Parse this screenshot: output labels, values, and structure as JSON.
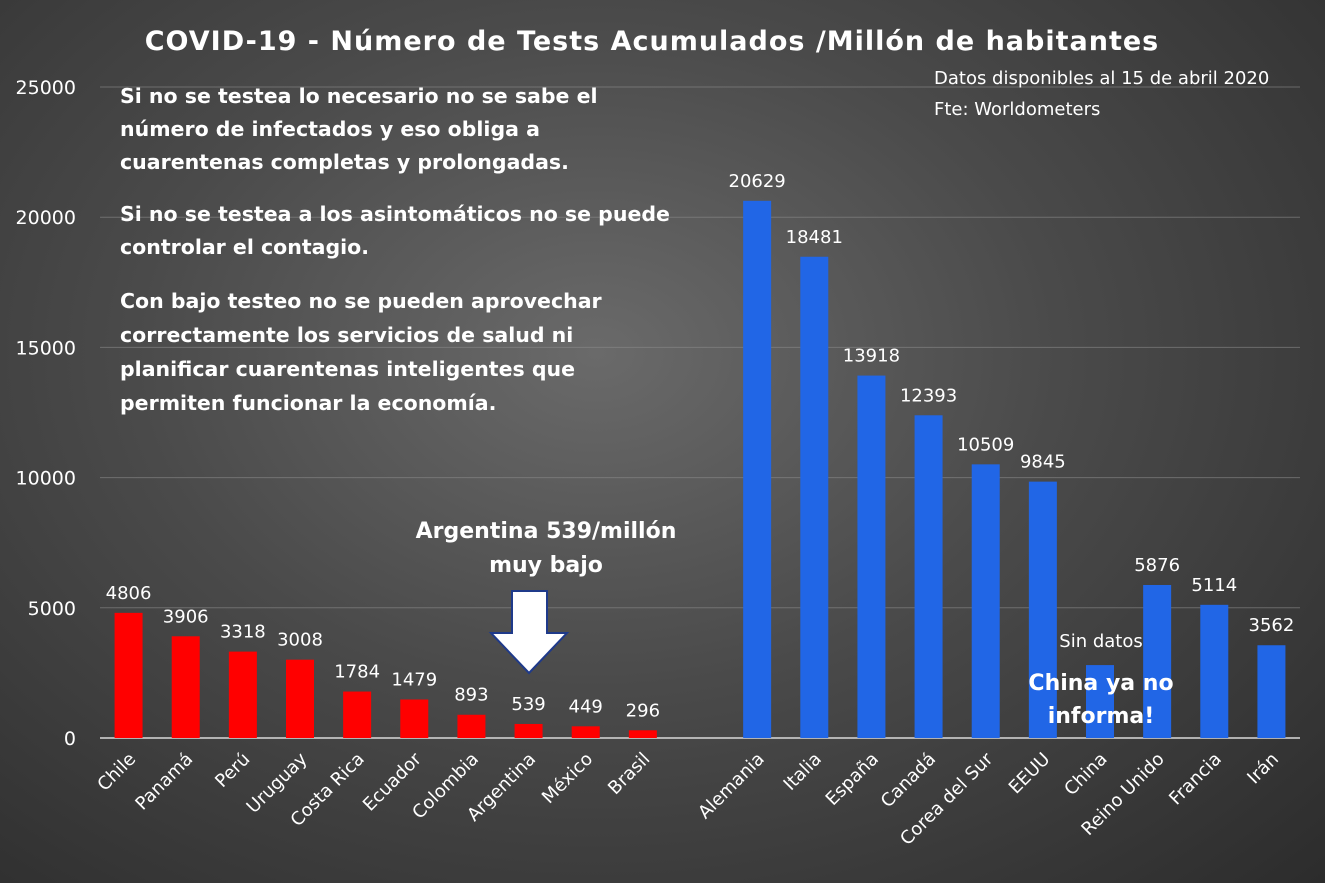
{
  "chart_data": {
    "type": "bar",
    "title": "COVID-19 - Número de Tests Acumulados /Millón de habitantes",
    "xlabel": "",
    "ylabel": "",
    "ylim": [
      0,
      25000
    ],
    "yticks": [
      "0",
      "5000",
      "10000",
      "15000",
      "20000",
      "25000"
    ],
    "grid": true,
    "colors": {
      "latam": "#ff0000",
      "others": "#2166e6",
      "arrow_stroke": "#1f3a8a"
    },
    "categories": [
      "Chile",
      "Panamá",
      "Perú",
      "Uruguay",
      "Costa Rica",
      "Ecuador",
      "Colombia",
      "Argentina",
      "México",
      "Brasil",
      "Alemania",
      "Italia",
      "España",
      "Canadá",
      "Corea del Sur",
      "EEUU",
      "China",
      "Reino Unido",
      "Francia",
      "Irán"
    ],
    "groups": [
      {
        "color": "#ff0000",
        "categories": [
          "Chile",
          "Panamá",
          "Perú",
          "Uruguay",
          "Costa Rica",
          "Ecuador",
          "Colombia",
          "Argentina",
          "México",
          "Brasil"
        ],
        "values": [
          4806,
          3906,
          3318,
          3008,
          1784,
          1479,
          893,
          539,
          449,
          296
        ],
        "labels": [
          "4806",
          "3906",
          "3318",
          "3008",
          "1784",
          "1479",
          "893",
          "539",
          "449",
          "296"
        ]
      },
      {
        "color": "#2166e6",
        "categories": [
          "Alemania",
          "Italia",
          "España",
          "Canadá",
          "Corea del Sur",
          "EEUU",
          "China",
          "Reino Unido",
          "Francia",
          "Irán"
        ],
        "values": [
          20629,
          18481,
          13918,
          12393,
          10509,
          9845,
          2800,
          5876,
          5114,
          3562
        ],
        "labels": [
          "20629",
          "18481",
          "13918",
          "12393",
          "10509",
          "9845",
          "",
          "5876",
          "5114",
          "3562"
        ]
      }
    ],
    "annotations": {
      "source_lines": [
        "Datos disponibles al 15 de abril 2020",
        "Fte: Worldometers"
      ],
      "message_lines": [
        "Si no se testea lo necesario no se sabe el",
        "número de infectados y eso obliga a",
        "cuarentenas completas y prolongadas.",
        "Si no se testea a los asintomáticos no se puede",
        "controlar el contagio.",
        "Con bajo testeo no se pueden aprovechar",
        "correctamente los servicios de salud ni",
        "planificar  cuarentenas inteligentes que",
        "permiten funcionar la economía."
      ],
      "argentina_callout": [
        "Argentina 539/millón",
        "muy bajo"
      ],
      "china_no_data": "Sin datos",
      "china_callout": [
        "China ya no",
        "informa!"
      ]
    }
  }
}
